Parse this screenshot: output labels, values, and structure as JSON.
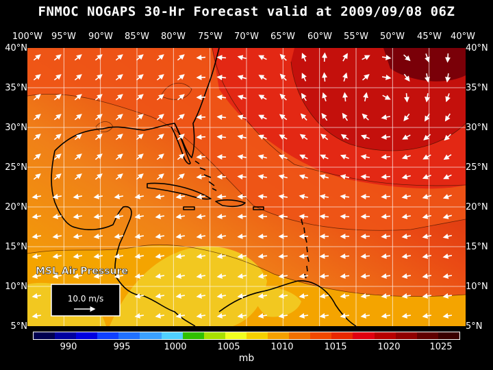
{
  "title": "FNMOC NOGAPS 30-Hr Forecast valid at 2009/09/08 06Z",
  "product_label": "MSL Air Pressure",
  "legend": {
    "vector_label": "10.0 m/s"
  },
  "lon_labels": [
    "100°W",
    "95°W",
    "90°W",
    "85°W",
    "80°W",
    "75°W",
    "70°W",
    "65°W",
    "60°W",
    "55°W",
    "50°W",
    "45°W",
    "40°W"
  ],
  "lat_labels": [
    "40°N",
    "35°N",
    "30°N",
    "25°N",
    "20°N",
    "15°N",
    "10°N",
    "5°N"
  ],
  "colorbar": {
    "colors": [
      "#000050",
      "#0000a0",
      "#0000e0",
      "#1040ff",
      "#2070ff",
      "#3aa0ff",
      "#50d0ff",
      "#30c000",
      "#a8e000",
      "#f0ff20",
      "#f4d000",
      "#f4a000",
      "#f07000",
      "#f04800",
      "#e82800",
      "#e00010",
      "#b80000",
      "#900000",
      "#600000",
      "#3a0000"
    ],
    "tick_labels": [
      "990",
      "995",
      "1000",
      "1005",
      "1010",
      "1015",
      "1020",
      "1025"
    ],
    "units": "mb"
  },
  "colors": {
    "low_yellow": "#f0c820",
    "mid_orange": "#f08018",
    "red": "#e82818",
    "deep_red": "#a00000"
  }
}
